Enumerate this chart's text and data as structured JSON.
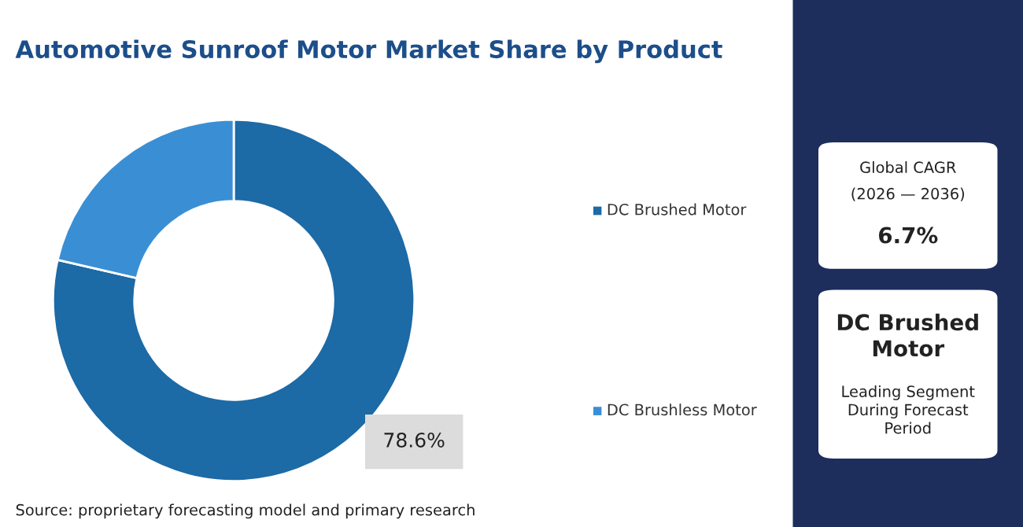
{
  "chart_data": [
    {
      "type": "donut",
      "title": "Automotive Sunroof Motor Market Share by Product",
      "categories": [
        "DC Brushed Motor",
        "DC Brushless Motor"
      ],
      "values": [
        78.6,
        21.4
      ],
      "colors": [
        "#1c6aa6",
        "#3a8fd4"
      ],
      "value_labels": [
        "78.6%",
        null
      ],
      "legend": "right",
      "annotations": [
        "Source: proprietary forecasting model and primary research"
      ]
    },
    {
      "type": "other",
      "annotations": [
        "Global CAGR",
        "(2026 — 2036)",
        "6.7%",
        "DC Brushed Motor",
        "Leading Segment During Forecast Period"
      ]
    }
  ]
}
